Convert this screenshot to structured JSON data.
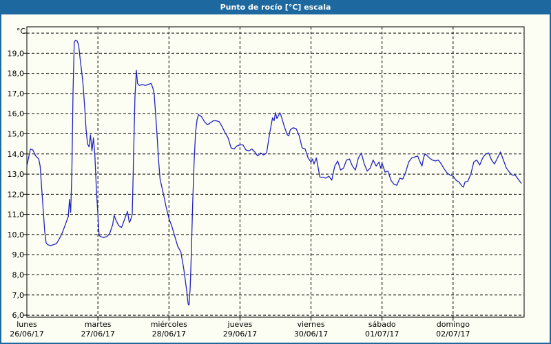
{
  "header": {
    "title": "Punto de rocío [°C] escala"
  },
  "colors": {
    "title_bar": "#1d689e",
    "title_text": "#ffffff",
    "window_border": "#1d689e",
    "background": "#fcfdf3",
    "grid": "#000000",
    "frame": "#000000",
    "line": "#2222c0",
    "label_text": "#000000"
  },
  "chart_data": {
    "type": "line",
    "title": "Punto de rocío [°C] escala",
    "ylabel": "°C",
    "xlabel": "",
    "grid": "dashed",
    "legend": "none",
    "y_axis": {
      "min": 5.9,
      "max": 20.31,
      "grid_min": 6,
      "grid_max": 20,
      "grid_step": 1,
      "labeled_min": 6,
      "labeled_max": 19
    },
    "x_axis": {
      "max_hours": 168,
      "hours_per_day": 24
    },
    "y_tick_labels": [
      "6,0",
      "7,0",
      "8,0",
      "9,0",
      "10,0",
      "11,0",
      "12,0",
      "13,0",
      "14,0",
      "15,0",
      "16,0",
      "17,0",
      "18,0",
      "19,0"
    ],
    "days": [
      {
        "name": "lunes",
        "date": "26/06/17"
      },
      {
        "name": "martes",
        "date": "27/06/17"
      },
      {
        "name": "miércoles",
        "date": "28/06/17"
      },
      {
        "name": "jueves",
        "date": "29/06/17"
      },
      {
        "name": "viernes",
        "date": "30/06/17"
      },
      {
        "name": "sábado",
        "date": "01/07/17"
      },
      {
        "name": "domingo",
        "date": "02/07/17"
      }
    ],
    "series": [
      {
        "name": "Punto de rocío",
        "color": "#2222c0",
        "points": [
          [
            0,
            13.4
          ],
          [
            0.7,
            13.9
          ],
          [
            1.2,
            14.25
          ],
          [
            2,
            14.2
          ],
          [
            3,
            13.9
          ],
          [
            4,
            13.75
          ],
          [
            4.5,
            13.4
          ],
          [
            5,
            12.3
          ],
          [
            5.5,
            11.3
          ],
          [
            6,
            10.2
          ],
          [
            6.5,
            9.6
          ],
          [
            7,
            9.5
          ],
          [
            8,
            9.45
          ],
          [
            9,
            9.5
          ],
          [
            10,
            9.55
          ],
          [
            11,
            9.8
          ],
          [
            12,
            10.1
          ],
          [
            13,
            10.5
          ],
          [
            14,
            10.9
          ],
          [
            14.4,
            11.75
          ],
          [
            14.8,
            11.1
          ],
          [
            15.2,
            13.0
          ],
          [
            15.6,
            17.0
          ],
          [
            16,
            19.55
          ],
          [
            16.5,
            19.65
          ],
          [
            17,
            19.6
          ],
          [
            17.5,
            19.4
          ],
          [
            18,
            18.7
          ],
          [
            18.6,
            18.0
          ],
          [
            19,
            17.4
          ],
          [
            19.6,
            16.2
          ],
          [
            20,
            15.2
          ],
          [
            20.5,
            14.5
          ],
          [
            21,
            14.35
          ],
          [
            21.5,
            14.95
          ],
          [
            22,
            14.15
          ],
          [
            22.5,
            14.8
          ],
          [
            23,
            13.9
          ],
          [
            23.5,
            12.2
          ],
          [
            24,
            11.0
          ],
          [
            24.4,
            9.95
          ],
          [
            25,
            9.9
          ],
          [
            26,
            9.85
          ],
          [
            27,
            9.9
          ],
          [
            28,
            10.05
          ],
          [
            29,
            10.5
          ],
          [
            29.5,
            10.95
          ],
          [
            30,
            10.75
          ],
          [
            31,
            10.45
          ],
          [
            32,
            10.35
          ],
          [
            33,
            10.75
          ],
          [
            34,
            11.15
          ],
          [
            34.6,
            10.6
          ],
          [
            35,
            10.7
          ],
          [
            35.6,
            11.0
          ],
          [
            36,
            13.5
          ],
          [
            36.5,
            16.8
          ],
          [
            37,
            18.15
          ],
          [
            37.4,
            17.5
          ],
          [
            38,
            17.4
          ],
          [
            39,
            17.45
          ],
          [
            40,
            17.4
          ],
          [
            41,
            17.45
          ],
          [
            42,
            17.5
          ],
          [
            42.6,
            17.25
          ],
          [
            43,
            17.0
          ],
          [
            43.5,
            16.0
          ],
          [
            44,
            14.9
          ],
          [
            44.5,
            13.7
          ],
          [
            45,
            12.75
          ],
          [
            46,
            12.1
          ],
          [
            47,
            11.4
          ],
          [
            48,
            10.8
          ],
          [
            49,
            10.4
          ],
          [
            50,
            9.9
          ],
          [
            51,
            9.4
          ],
          [
            52,
            9.15
          ],
          [
            53,
            8.3
          ],
          [
            54,
            7.2
          ],
          [
            54.5,
            6.55
          ],
          [
            54.8,
            6.5
          ],
          [
            55.2,
            7.4
          ],
          [
            55.6,
            9.2
          ],
          [
            56,
            11.5
          ],
          [
            56.5,
            13.6
          ],
          [
            57,
            15.1
          ],
          [
            57.5,
            15.7
          ],
          [
            58,
            15.95
          ],
          [
            59,
            15.85
          ],
          [
            60,
            15.6
          ],
          [
            61,
            15.45
          ],
          [
            62,
            15.55
          ],
          [
            63,
            15.65
          ],
          [
            64,
            15.65
          ],
          [
            65,
            15.6
          ],
          [
            66,
            15.35
          ],
          [
            67,
            15.05
          ],
          [
            68,
            14.8
          ],
          [
            69,
            14.3
          ],
          [
            70,
            14.25
          ],
          [
            71,
            14.4
          ],
          [
            72,
            14.45
          ],
          [
            73,
            14.45
          ],
          [
            74,
            14.2
          ],
          [
            75,
            14.15
          ],
          [
            76,
            14.25
          ],
          [
            77,
            14.1
          ],
          [
            78,
            13.9
          ],
          [
            79,
            14.05
          ],
          [
            80,
            13.95
          ],
          [
            81,
            14.05
          ],
          [
            82,
            15.0
          ],
          [
            83,
            15.8
          ],
          [
            83.5,
            15.65
          ],
          [
            84,
            16.05
          ],
          [
            84.5,
            15.75
          ],
          [
            85,
            15.9
          ],
          [
            85.5,
            16.05
          ],
          [
            86,
            15.85
          ],
          [
            87,
            15.35
          ],
          [
            88,
            14.95
          ],
          [
            88.5,
            14.9
          ],
          [
            89,
            15.2
          ],
          [
            90,
            15.3
          ],
          [
            91,
            15.25
          ],
          [
            92,
            14.9
          ],
          [
            93,
            14.3
          ],
          [
            94,
            14.25
          ],
          [
            95,
            13.8
          ],
          [
            96,
            13.6
          ],
          [
            96.5,
            13.75
          ],
          [
            97,
            13.5
          ],
          [
            97.8,
            13.8
          ],
          [
            98.3,
            13.4
          ],
          [
            99,
            12.85
          ],
          [
            100,
            12.85
          ],
          [
            101,
            12.8
          ],
          [
            102,
            12.9
          ],
          [
            103,
            12.7
          ],
          [
            104,
            13.4
          ],
          [
            105,
            13.65
          ],
          [
            106,
            13.2
          ],
          [
            107,
            13.3
          ],
          [
            108,
            13.7
          ],
          [
            109,
            13.75
          ],
          [
            110,
            13.4
          ],
          [
            111,
            13.2
          ],
          [
            112,
            13.8
          ],
          [
            113,
            14.05
          ],
          [
            114,
            13.5
          ],
          [
            115,
            13.15
          ],
          [
            116,
            13.3
          ],
          [
            117,
            13.7
          ],
          [
            118,
            13.4
          ],
          [
            119,
            13.6
          ],
          [
            119.5,
            13.3
          ],
          [
            120,
            13.55
          ],
          [
            121,
            13.1
          ],
          [
            122,
            13.15
          ],
          [
            123,
            12.7
          ],
          [
            124,
            12.5
          ],
          [
            125,
            12.45
          ],
          [
            126,
            12.8
          ],
          [
            127,
            12.75
          ],
          [
            128,
            13.1
          ],
          [
            129,
            13.6
          ],
          [
            130,
            13.8
          ],
          [
            131,
            13.85
          ],
          [
            132,
            13.9
          ],
          [
            133,
            13.55
          ],
          [
            133.5,
            13.4
          ],
          [
            134,
            13.8
          ],
          [
            134.5,
            14.0
          ],
          [
            135,
            13.95
          ],
          [
            136,
            13.8
          ],
          [
            137,
            13.7
          ],
          [
            138,
            13.65
          ],
          [
            139,
            13.7
          ],
          [
            140,
            13.5
          ],
          [
            141,
            13.25
          ],
          [
            142,
            13.05
          ],
          [
            143,
            12.95
          ],
          [
            144,
            12.9
          ],
          [
            145,
            12.7
          ],
          [
            146,
            12.6
          ],
          [
            147,
            12.4
          ],
          [
            147.5,
            12.35
          ],
          [
            148,
            12.6
          ],
          [
            149,
            12.65
          ],
          [
            150,
            13.0
          ],
          [
            151,
            13.6
          ],
          [
            152,
            13.7
          ],
          [
            153,
            13.45
          ],
          [
            154,
            13.8
          ],
          [
            155,
            14.0
          ],
          [
            156,
            14.05
          ],
          [
            157,
            13.7
          ],
          [
            158,
            13.5
          ],
          [
            159,
            13.8
          ],
          [
            160,
            14.1
          ],
          [
            161,
            13.7
          ],
          [
            162,
            13.3
          ],
          [
            163,
            13.1
          ],
          [
            164,
            12.95
          ],
          [
            165,
            12.95
          ],
          [
            166,
            12.75
          ],
          [
            167,
            12.55
          ]
        ]
      }
    ]
  }
}
